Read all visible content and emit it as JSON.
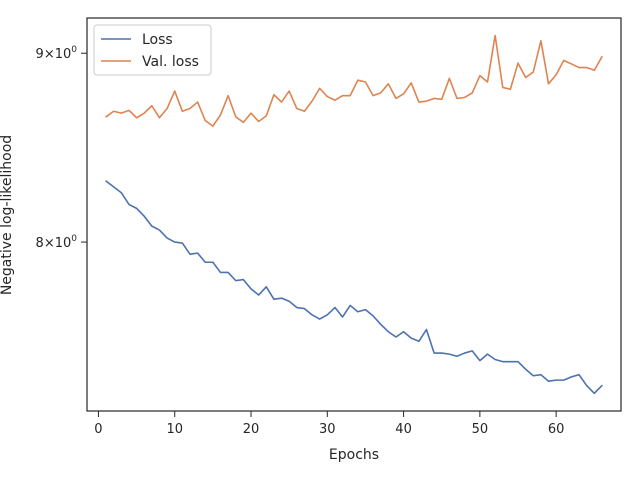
{
  "chart_data": {
    "type": "line",
    "xlabel": "Epochs",
    "ylabel": "Negative log-likelihood",
    "y_scale": "log",
    "xlim": [
      -1.5,
      68.5
    ],
    "ylim": [
      7.2,
      9.2
    ],
    "x_ticks": [
      0,
      10,
      20,
      30,
      40,
      50,
      60
    ],
    "y_ticks": [
      {
        "value": 8,
        "base": "8",
        "exp": "0"
      },
      {
        "value": 9,
        "base": "9",
        "exp": "0"
      }
    ],
    "tick_sep": "×10",
    "grid": false,
    "legend_position": "top-left",
    "x": [
      1,
      2,
      3,
      4,
      5,
      6,
      7,
      8,
      9,
      10,
      11,
      12,
      13,
      14,
      15,
      16,
      17,
      18,
      19,
      20,
      21,
      22,
      23,
      24,
      25,
      26,
      27,
      28,
      29,
      30,
      31,
      32,
      33,
      34,
      35,
      36,
      37,
      38,
      39,
      40,
      41,
      42,
      43,
      44,
      45,
      46,
      47,
      48,
      49,
      50,
      51,
      52,
      53,
      54,
      55,
      56,
      57,
      58,
      59,
      60,
      61,
      62,
      63,
      64,
      65,
      66
    ],
    "series": [
      {
        "name": "Loss",
        "color": "#4c72b0",
        "values": [
          8.31,
          8.28,
          8.25,
          8.19,
          8.17,
          8.13,
          8.08,
          8.06,
          8.02,
          8.0,
          7.995,
          7.94,
          7.945,
          7.9,
          7.9,
          7.85,
          7.85,
          7.81,
          7.815,
          7.77,
          7.74,
          7.78,
          7.72,
          7.725,
          7.71,
          7.68,
          7.675,
          7.645,
          7.625,
          7.645,
          7.68,
          7.635,
          7.69,
          7.66,
          7.67,
          7.64,
          7.6,
          7.565,
          7.54,
          7.565,
          7.535,
          7.52,
          7.575,
          7.465,
          7.465,
          7.46,
          7.45,
          7.465,
          7.475,
          7.43,
          7.46,
          7.435,
          7.425,
          7.425,
          7.425,
          7.39,
          7.36,
          7.365,
          7.335,
          7.34,
          7.34,
          7.355,
          7.365,
          7.315,
          7.28,
          7.315
        ]
      },
      {
        "name": "Val. loss",
        "color": "#dd8452",
        "values": [
          8.65,
          8.68,
          8.67,
          8.685,
          8.645,
          8.67,
          8.71,
          8.645,
          8.695,
          8.79,
          8.68,
          8.695,
          8.73,
          8.63,
          8.6,
          8.66,
          8.765,
          8.65,
          8.62,
          8.67,
          8.625,
          8.655,
          8.77,
          8.73,
          8.79,
          8.695,
          8.68,
          8.735,
          8.805,
          8.76,
          8.74,
          8.765,
          8.765,
          8.85,
          8.84,
          8.765,
          8.78,
          8.83,
          8.75,
          8.775,
          8.835,
          8.73,
          8.735,
          8.75,
          8.745,
          8.86,
          8.75,
          8.755,
          8.78,
          8.875,
          8.84,
          9.1,
          8.81,
          8.8,
          8.945,
          8.865,
          8.895,
          9.07,
          8.83,
          8.88,
          8.96,
          8.94,
          8.92,
          8.92,
          8.905,
          8.98
        ]
      }
    ]
  }
}
